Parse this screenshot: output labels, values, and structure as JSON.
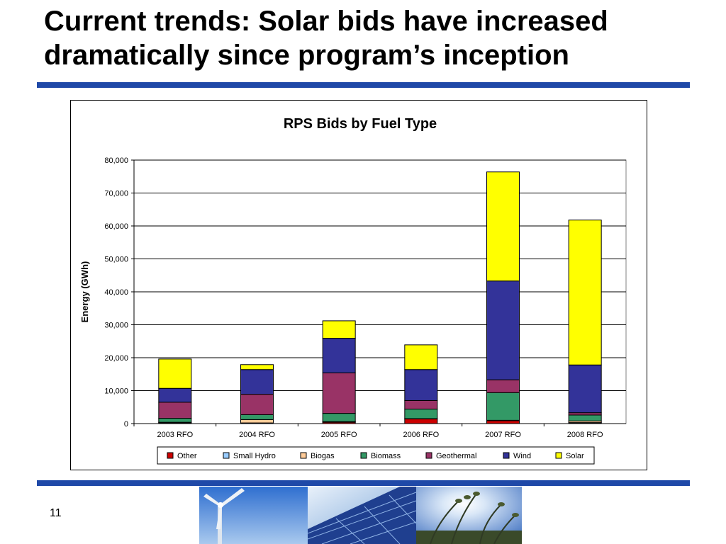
{
  "slide": {
    "title_line1": "Current trends: Solar bids have increased",
    "title_line2": "dramatically since program’s inception",
    "page_number": "11"
  },
  "images": {
    "photo1": "wind-turbine-photo",
    "photo2": "solar-panel-photo",
    "photo3": "biomass-grass-photo"
  },
  "chart_data": {
    "type": "bar",
    "stacked": true,
    "title": "RPS Bids by Fuel Type",
    "xlabel": "",
    "ylabel": "Energy (GWh)",
    "ylim": [
      0,
      80000
    ],
    "yticks": [
      0,
      10000,
      20000,
      30000,
      40000,
      50000,
      60000,
      70000,
      80000
    ],
    "ytick_labels": [
      "0",
      "10,000",
      "20,000",
      "30,000",
      "40,000",
      "50,000",
      "60,000",
      "70,000",
      "80,000"
    ],
    "grid": true,
    "legend_position": "bottom",
    "categories": [
      "2003 RFO",
      "2004 RFO",
      "2005 RFO",
      "2006 RFO",
      "2007 RFO",
      "2008 RFO"
    ],
    "series": [
      {
        "name": "Other",
        "color": "#cc0000",
        "values": [
          200,
          100,
          400,
          1400,
          900,
          200
        ]
      },
      {
        "name": "Small Hydro",
        "color": "#99ccff",
        "values": [
          100,
          100,
          100,
          100,
          100,
          100
        ]
      },
      {
        "name": "Biogas",
        "color": "#ffcc99",
        "values": [
          100,
          1000,
          100,
          0,
          0,
          500
        ]
      },
      {
        "name": "Biomass",
        "color": "#339966",
        "values": [
          1200,
          1500,
          2500,
          2900,
          8400,
          1800
        ]
      },
      {
        "name": "Geothermal",
        "color": "#993366",
        "values": [
          4900,
          6200,
          12300,
          2600,
          3900,
          700
        ]
      },
      {
        "name": "Wind",
        "color": "#333399",
        "values": [
          4200,
          7500,
          10500,
          9400,
          30000,
          14500
        ]
      },
      {
        "name": "Solar",
        "color": "#ffff00",
        "values": [
          8900,
          1500,
          5300,
          7500,
          33100,
          44000
        ]
      }
    ]
  }
}
